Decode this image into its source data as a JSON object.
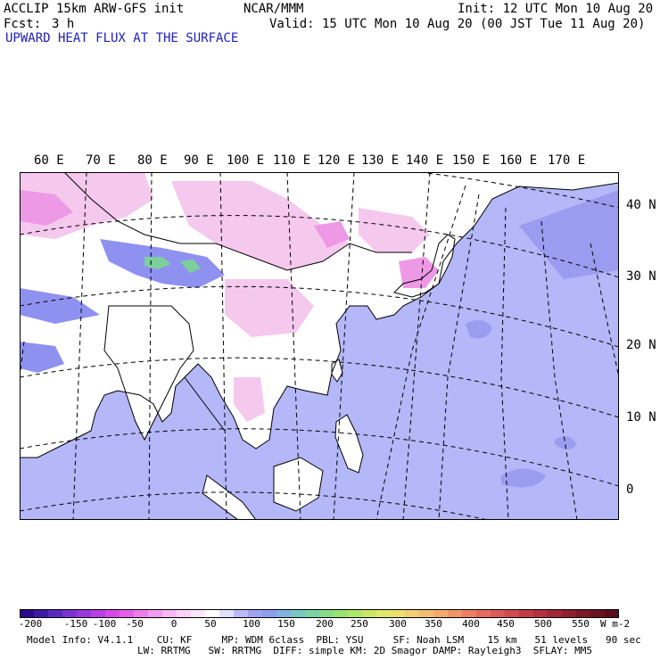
{
  "header": {
    "model_title": "ACCLIP 15km ARW-GFS init",
    "org": "NCAR/MMM",
    "init": "Init: 12 UTC Mon 10 Aug 20",
    "fcst_label": "Fcst:",
    "fcst_value": "3 h",
    "valid": "Valid: 15 UTC Mon 10 Aug 20 (00 JST Tue 11 Aug 20)",
    "field_title": "UPWARD HEAT FLUX AT THE SURFACE"
  },
  "map": {
    "lon_labels": [
      "60 E",
      "70 E",
      "80 E",
      "90 E",
      "100 E",
      "110 E",
      "120 E",
      "130 E",
      "140 E",
      "150 E",
      "160 E",
      "170 E"
    ],
    "lat_labels": [
      "40 N",
      "30 N",
      "20 N",
      "10 N",
      "0"
    ],
    "colors": {
      "land": "#ffffff",
      "land_pink": "#f5c8ee",
      "land_pink_strong": "#ee99e6",
      "land_blue": "#8f91f0",
      "land_green": "#7ccf9a",
      "ocean": "#b4b7f8",
      "ocean_deep": "#9a9cf0",
      "coast": "#000000",
      "grid": "#000000"
    }
  },
  "colorbar": {
    "ticks": [
      "-200",
      "-150",
      "-100",
      "-50",
      "0",
      "50",
      "100",
      "150",
      "200",
      "250",
      "300",
      "350",
      "400",
      "450",
      "500",
      "550"
    ],
    "unit": "W m-2",
    "colors": [
      "#2a0a8a",
      "#3e1aa4",
      "#5a2abf",
      "#7a33d2",
      "#9b38dd",
      "#bb3ee3",
      "#d84ae7",
      "#e560e9",
      "#ee7ced",
      "#f29bf0",
      "#f5b8f3",
      "#f9d3f7",
      "#fbe6fa",
      "#ffffff",
      "#dfe0fb",
      "#b8baf7",
      "#9fa3f1",
      "#8e9ded",
      "#80b3e0",
      "#79c6c3",
      "#7bd2a2",
      "#86dc88",
      "#98e274",
      "#b0e66a",
      "#c9e868",
      "#dde86c",
      "#ecdf70",
      "#f1cf72",
      "#f2bd70",
      "#f2aa6c",
      "#f09568",
      "#ec8064",
      "#e56c5f",
      "#dc5a58",
      "#d04a50",
      "#c23c48",
      "#b23040",
      "#a02638",
      "#8e1e30",
      "#7c1828",
      "#6a1222",
      "#5a0c1c"
    ]
  },
  "footer": {
    "line1": "Model Info: V4.1.1    CU: KF     MP: WDM 6class  PBL: YSU     SF: Noah LSM    15 km   51 levels   90 sec",
    "line2": "LW: RRTMG   SW: RRTMG  DIFF: simple KM: 2D Smagor DAMP: Rayleigh3  SFLAY: MM5"
  }
}
